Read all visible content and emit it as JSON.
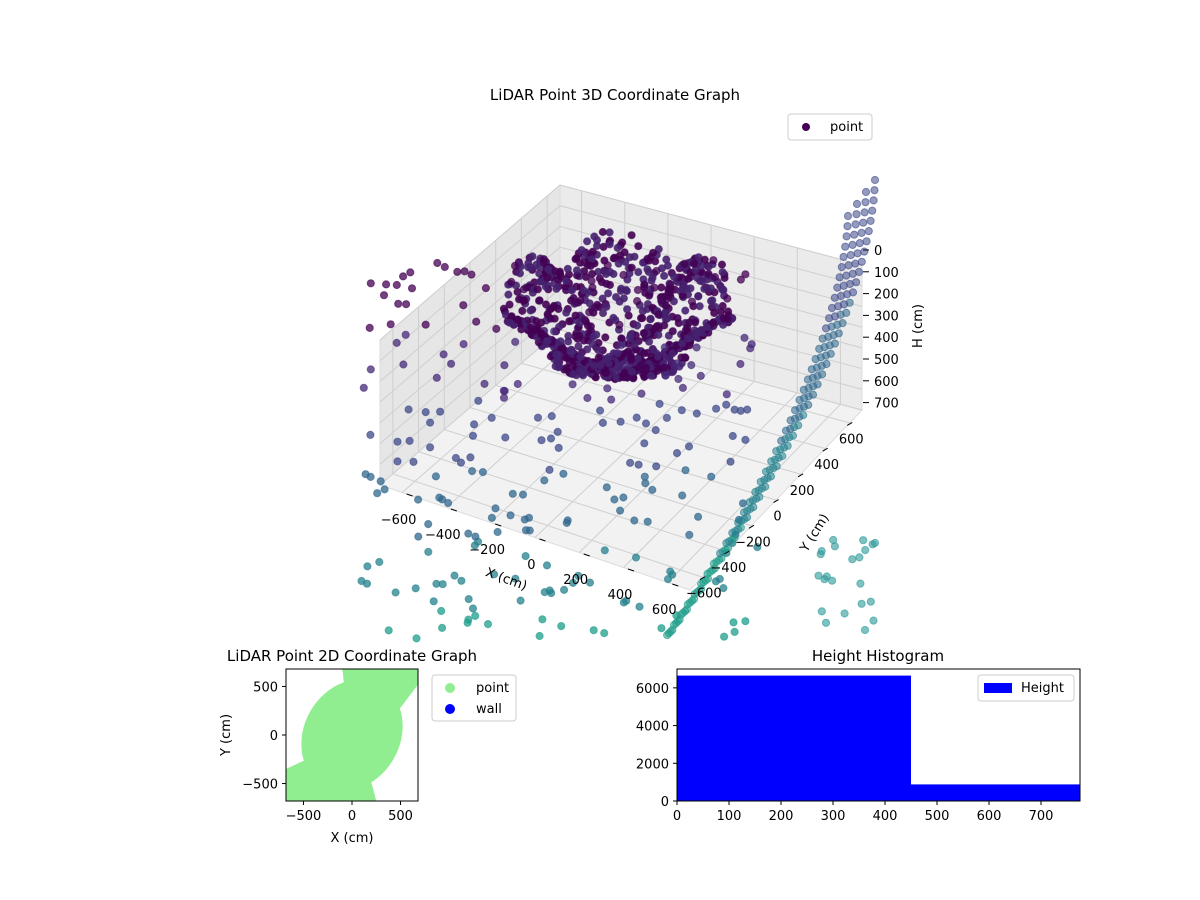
{
  "chart_data": [
    {
      "type": "scatter",
      "projection": "3d",
      "title": "LiDAR Point 3D Coordinate Graph",
      "xlabel": "X (cm)",
      "ylabel": "Y (cm)",
      "zlabel": "H (cm)",
      "xlim": [
        -680,
        680
      ],
      "ylim": [
        -680,
        680
      ],
      "zlim": [
        0,
        770
      ],
      "z_inverted": true,
      "xticks": [
        "−600",
        "−400",
        "−200",
        "0",
        "200",
        "400",
        "600"
      ],
      "yticks": [
        "−600",
        "−400",
        "−200",
        "0",
        "200",
        "400",
        "600"
      ],
      "zticks": [
        "0",
        "100",
        "200",
        "300",
        "400",
        "500",
        "600",
        "700"
      ],
      "colormap": "viridis by height",
      "grid": true,
      "legend": {
        "position": "top-right",
        "entries": [
          {
            "label": "point",
            "color": "#440154"
          }
        ]
      },
      "series": [
        {
          "name": "point",
          "description_values": "dense bowl of points centred near (-100, 0) at heights 50-350 cm plus sparse scatter below and curved wall columns near x ~ 600",
          "sample_points": [
            [
              -300,
              -50,
              80
            ],
            [
              -250,
              100,
              120
            ],
            [
              -150,
              200,
              60
            ],
            [
              0,
              250,
              90
            ],
            [
              150,
              150,
              70
            ],
            [
              200,
              -50,
              110
            ],
            [
              -50,
              -150,
              150
            ],
            [
              100,
              -100,
              200
            ],
            [
              -200,
              -150,
              180
            ],
            [
              50,
              100,
              250
            ],
            [
              -100,
              50,
              300
            ],
            [
              0,
              -50,
              320
            ],
            [
              -300,
              200,
              400
            ],
            [
              200,
              300,
              450
            ],
            [
              -150,
              -300,
              500
            ],
            [
              300,
              -200,
              550
            ],
            [
              100,
              250,
              600
            ],
            [
              -250,
              300,
              650
            ],
            [
              400,
              100,
              700
            ],
            [
              -400,
              -100,
              720
            ]
          ]
        }
      ]
    },
    {
      "type": "scatter",
      "title": "LiDAR Point 2D Coordinate Graph",
      "xlabel": "X (cm)",
      "ylabel": "Y (cm)",
      "xlim": [
        -680,
        680
      ],
      "ylim": [
        -680,
        680
      ],
      "xticks": [
        "−500",
        "0",
        "500"
      ],
      "yticks": [
        "−500",
        "0",
        "500"
      ],
      "legend": {
        "position": "right-outside",
        "entries": [
          {
            "label": "point",
            "color": "#90ee90"
          },
          {
            "label": "wall",
            "color": "#0000ff"
          }
        ]
      }
    },
    {
      "type": "bar",
      "subtype": "histogram",
      "title": "Height Histogram",
      "xlim": [
        0,
        775
      ],
      "ylim": [
        0,
        7000
      ],
      "xticks": [
        "0",
        "100",
        "200",
        "300",
        "400",
        "500",
        "600",
        "700"
      ],
      "yticks": [
        "0",
        "2000",
        "4000",
        "6000"
      ],
      "bins": [
        {
          "from": 0,
          "to": 450,
          "count": 6650
        },
        {
          "from": 450,
          "to": 775,
          "count": 880
        }
      ],
      "series": [
        {
          "name": "Height",
          "color": "#0000ff"
        }
      ],
      "legend": {
        "position": "top-right",
        "entries": [
          {
            "label": "Height",
            "color": "#0000ff"
          }
        ]
      }
    }
  ]
}
